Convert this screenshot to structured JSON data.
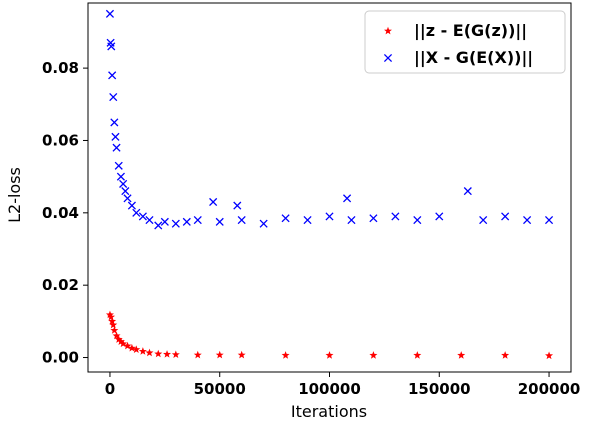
{
  "chart_data": {
    "type": "scatter",
    "xlabel": "Iterations",
    "ylabel": "L2-loss",
    "xlim": [
      -10000,
      210000
    ],
    "ylim": [
      -0.004,
      0.098
    ],
    "xticks": [
      0,
      50000,
      100000,
      150000,
      200000
    ],
    "xtick_labels": [
      "0",
      "50000",
      "100000",
      "150000",
      "200000"
    ],
    "yticks": [
      0.0,
      0.02,
      0.04,
      0.06,
      0.08
    ],
    "ytick_labels": [
      "0.00",
      "0.02",
      "0.04",
      "0.06",
      "0.08"
    ],
    "grid": false,
    "legend_position": "top-right",
    "series": [
      {
        "name": "||z - E(G(z))||",
        "marker": "star",
        "color": "#ff0000",
        "x": [
          0,
          500,
          1000,
          1500,
          2000,
          3000,
          4000,
          5000,
          6000,
          8000,
          10000,
          12000,
          15000,
          18000,
          22000,
          26000,
          30000,
          40000,
          50000,
          60000,
          80000,
          100000,
          120000,
          140000,
          160000,
          180000,
          200000
        ],
        "y": [
          0.0118,
          0.0112,
          0.01,
          0.009,
          0.0075,
          0.006,
          0.005,
          0.0044,
          0.0038,
          0.0032,
          0.0026,
          0.0022,
          0.0017,
          0.0013,
          0.001,
          0.0009,
          0.0008,
          0.0007,
          0.0007,
          0.0007,
          0.0006,
          0.0006,
          0.0006,
          0.0006,
          0.0006,
          0.0006,
          0.0005
        ]
      },
      {
        "name": "||X - G(E(X))||",
        "marker": "x",
        "color": "#0000ff",
        "x": [
          0,
          300,
          600,
          1000,
          1500,
          2000,
          2500,
          3000,
          4000,
          5000,
          6000,
          7000,
          8000,
          10000,
          12000,
          15000,
          18000,
          22000,
          25000,
          30000,
          35000,
          40000,
          47000,
          50000,
          58000,
          60000,
          70000,
          80000,
          90000,
          100000,
          108000,
          110000,
          120000,
          130000,
          140000,
          150000,
          163000,
          170000,
          180000,
          190000,
          200000
        ],
        "y": [
          0.095,
          0.087,
          0.086,
          0.078,
          0.072,
          0.065,
          0.061,
          0.058,
          0.053,
          0.05,
          0.048,
          0.046,
          0.044,
          0.042,
          0.04,
          0.039,
          0.038,
          0.0365,
          0.0375,
          0.037,
          0.0375,
          0.038,
          0.043,
          0.0375,
          0.042,
          0.038,
          0.037,
          0.0385,
          0.038,
          0.039,
          0.044,
          0.038,
          0.0385,
          0.039,
          0.038,
          0.039,
          0.046,
          0.038,
          0.039,
          0.038,
          0.038
        ]
      }
    ]
  }
}
